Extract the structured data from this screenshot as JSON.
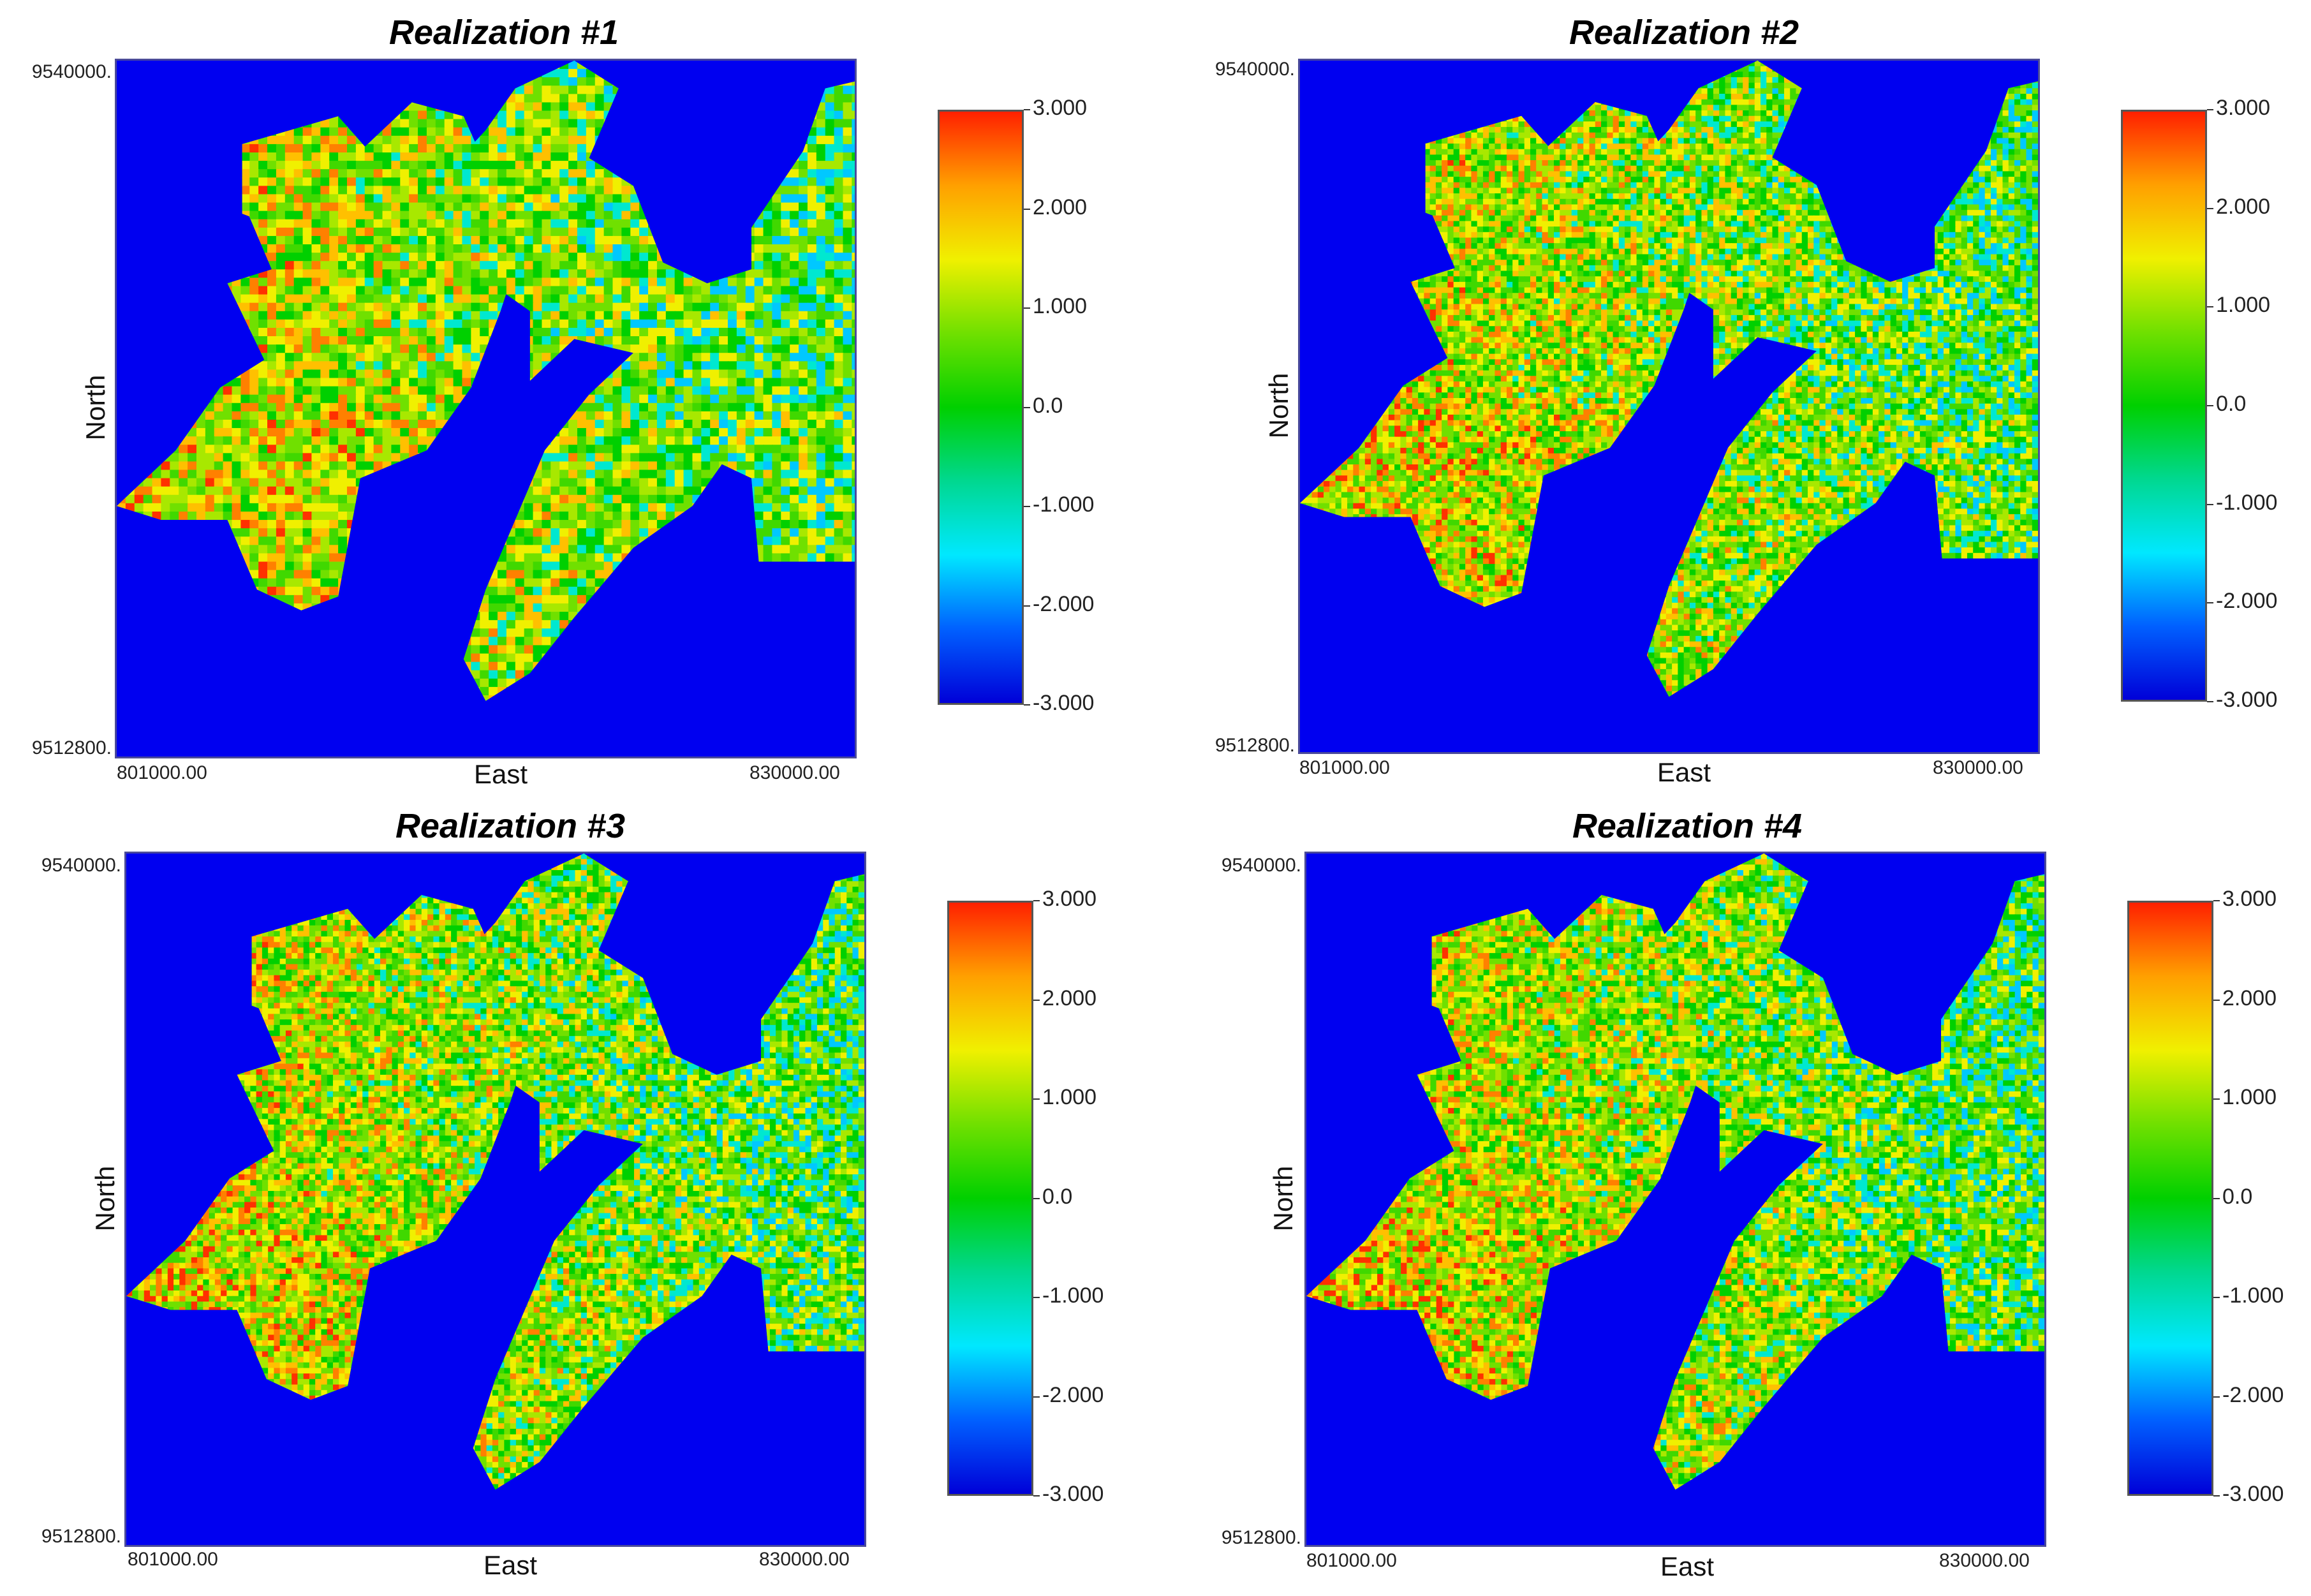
{
  "colors": {
    "background": "#0000f0",
    "colormap": [
      "#0000d8",
      "#0060ff",
      "#00e8ff",
      "#00d890",
      "#00d000",
      "#70e000",
      "#f0f000",
      "#ffa000",
      "#ff2000"
    ]
  },
  "chart_data": [
    {
      "type": "heatmap",
      "title": "Realization #1",
      "xlabel": "East",
      "ylabel": "North",
      "xlim": [
        801000,
        830000
      ],
      "ylim": [
        9512800,
        9540000
      ],
      "x_tick_labels": [
        "801000.00",
        "830000.00"
      ],
      "y_tick_labels": [
        "9540000.",
        "9512800."
      ],
      "colorbar": {
        "range": [
          -3,
          3
        ],
        "tick_labels": [
          "3.000",
          "2.000",
          "1.000",
          "0.0",
          "-1.000",
          "-2.000",
          "-3.000"
        ]
      }
    },
    {
      "type": "heatmap",
      "title": "Realization #2",
      "xlabel": "East",
      "ylabel": "North",
      "xlim": [
        801000,
        830000
      ],
      "ylim": [
        9512800,
        9540000
      ],
      "x_tick_labels": [
        "801000.00",
        "830000.00"
      ],
      "y_tick_labels": [
        "9540000.",
        "9512800."
      ],
      "colorbar": {
        "range": [
          -3,
          3
        ],
        "tick_labels": [
          "3.000",
          "2.000",
          "1.000",
          "0.0",
          "-1.000",
          "-2.000",
          "-3.000"
        ]
      }
    },
    {
      "type": "heatmap",
      "title": "Realization #3",
      "xlabel": "East",
      "ylabel": "North",
      "xlim": [
        801000,
        830000
      ],
      "ylim": [
        9512800,
        9540000
      ],
      "x_tick_labels": [
        "801000.00",
        "830000.00"
      ],
      "y_tick_labels": [
        "9540000.",
        "9512800."
      ],
      "colorbar": {
        "range": [
          -3,
          3
        ],
        "tick_labels": [
          "3.000",
          "2.000",
          "1.000",
          "0.0",
          "-1.000",
          "-2.000",
          "-3.000"
        ]
      }
    },
    {
      "type": "heatmap",
      "title": "Realization #4",
      "xlabel": "East",
      "ylabel": "North",
      "xlim": [
        801000,
        830000
      ],
      "ylim": [
        9512800,
        9540000
      ],
      "x_tick_labels": [
        "801000.00",
        "830000.00"
      ],
      "y_tick_labels": [
        "9540000.",
        "9512800."
      ],
      "colorbar": {
        "range": [
          -3,
          3
        ],
        "tick_labels": [
          "3.000",
          "2.000",
          "1.000",
          "0.0",
          "-1.000",
          "-2.000",
          "-3.000"
        ]
      }
    }
  ]
}
